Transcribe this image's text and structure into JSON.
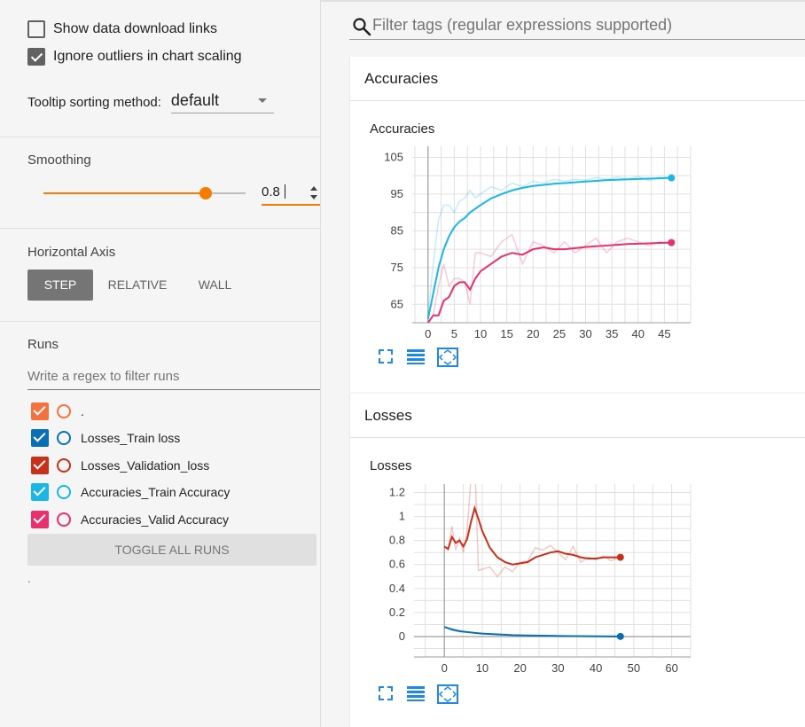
{
  "sidebar": {
    "show_download_links": {
      "label": "Show data download links",
      "checked": false
    },
    "ignore_outliers": {
      "label": "Ignore outliers in chart scaling",
      "checked": true
    },
    "tooltip_sorting": {
      "label": "Tooltip sorting method:",
      "value": "default"
    },
    "smoothing": {
      "label": "Smoothing",
      "value": "0.8",
      "fraction": 0.8
    },
    "horizontal_axis": {
      "label": "Horizontal Axis",
      "options": [
        "STEP",
        "RELATIVE",
        "WALL"
      ],
      "selected": "STEP"
    },
    "runs": {
      "label": "Runs",
      "filter_placeholder": "Write a regex to filter runs",
      "items": [
        {
          "label": ".",
          "color": "#f4723d",
          "checked": true
        },
        {
          "label": "Losses_Train loss",
          "color": "#0b6fb4",
          "checked": true
        },
        {
          "label": "Losses_Validation_loss",
          "color": "#c8301a",
          "checked": true
        },
        {
          "label": "Accuracies_Train Accuracy",
          "color": "#19b6e6",
          "checked": true
        },
        {
          "label": "Accuracies_Valid Accuracy",
          "color": "#e8306c",
          "checked": true
        }
      ],
      "toggle_label": "TOGGLE ALL RUNS",
      "footer": "."
    }
  },
  "tag_filter": {
    "placeholder": "Filter tags (regular expressions supported)",
    "icon": "search-icon"
  },
  "cards": [
    {
      "header": "Accuracies",
      "chart_title": "Accuracies"
    },
    {
      "header": "Losses",
      "chart_title": "Losses"
    }
  ],
  "chart_icons": [
    "fullscreen-icon",
    "data-table-icon",
    "fit-domain-icon"
  ],
  "chart_data": [
    {
      "type": "line",
      "title": "Accuracies",
      "xlabel": "",
      "ylabel": "",
      "xlim": [
        -3,
        50
      ],
      "ylim": [
        60,
        108
      ],
      "xticks": [
        0,
        5,
        10,
        15,
        20,
        25,
        30,
        35,
        40,
        45
      ],
      "yticks": [
        65,
        75,
        85,
        95,
        105
      ],
      "grid": true,
      "series": [
        {
          "name": "Accuracies_Train Accuracy",
          "color": "#19b6e6",
          "x": [
            0,
            1,
            2,
            3,
            4,
            5,
            6,
            7,
            8,
            9,
            10,
            12,
            14,
            16,
            18,
            20,
            22,
            24,
            26,
            28,
            30,
            32,
            34,
            36,
            38,
            40,
            42,
            44,
            46
          ],
          "y": [
            61,
            68,
            75,
            80,
            83.5,
            86,
            87.5,
            88.5,
            90,
            91,
            92,
            93.8,
            95,
            96,
            96.7,
            97.2,
            97.5,
            97.8,
            98,
            98.2,
            98.4,
            98.6,
            98.8,
            98.9,
            99,
            99.1,
            99.2,
            99.3,
            99.4
          ],
          "raw_y": [
            62,
            76,
            88,
            92,
            92,
            90,
            93,
            94,
            96,
            94,
            95,
            97,
            96,
            98,
            97,
            98.5,
            98,
            99,
            98.5,
            99,
            98.8,
            99.5,
            99,
            99.6,
            99.2,
            99.8,
            98.7,
            99.6,
            99.4
          ]
        },
        {
          "name": "Accuracies_Valid Accuracy",
          "color": "#e8306c",
          "x": [
            0,
            1,
            2,
            3,
            4,
            5,
            6,
            7,
            8,
            9,
            10,
            12,
            14,
            16,
            18,
            20,
            22,
            24,
            26,
            28,
            30,
            32,
            34,
            36,
            38,
            40,
            42,
            44,
            46
          ],
          "y": [
            60,
            62,
            62,
            66,
            67,
            70,
            71,
            71,
            69,
            72,
            74,
            76,
            78,
            79,
            78.5,
            80,
            80.5,
            80,
            80,
            80.3,
            80.6,
            80.8,
            81,
            81.2,
            81.4,
            81.5,
            81.6,
            81.7,
            81.8
          ],
          "raw_y": [
            60,
            62,
            70,
            76,
            70,
            72,
            72,
            71,
            65,
            79,
            79,
            78,
            82,
            84,
            76,
            82,
            81,
            79,
            82,
            79,
            81,
            83,
            79,
            82,
            83,
            82,
            81,
            82,
            81.5
          ]
        }
      ]
    },
    {
      "type": "line",
      "title": "Losses",
      "xlabel": "",
      "ylabel": "",
      "xlim": [
        -8,
        65
      ],
      "ylim": [
        -0.17,
        1.27
      ],
      "xticks": [
        0,
        10,
        20,
        30,
        40,
        50,
        60
      ],
      "yticks": [
        0,
        0.2,
        0.4,
        0.6,
        0.8,
        1,
        1.2
      ],
      "ytick_labels": [
        "0",
        "0.2",
        "0.4",
        "0.6",
        "0.8",
        "1",
        "1.2"
      ],
      "grid": true,
      "series": [
        {
          "name": "Losses_Train loss",
          "color": "#0b6fb4",
          "x": [
            0,
            2,
            4,
            6,
            8,
            10,
            14,
            18,
            22,
            26,
            30,
            34,
            38,
            42,
            46
          ],
          "y": [
            0.08,
            0.06,
            0.045,
            0.038,
            0.03,
            0.025,
            0.018,
            0.012,
            0.009,
            0.007,
            0.005,
            0.004,
            0.003,
            0.002,
            0.001
          ],
          "raw_y": [
            0.08,
            0.05,
            0.04,
            0.035,
            0.03,
            0.022,
            0.015,
            0.01,
            0.008,
            0.006,
            0.004,
            0.003,
            0.002,
            0.002,
            0.001
          ]
        },
        {
          "name": "Losses_Validation_loss",
          "color": "#c8301a",
          "x": [
            0,
            1,
            2,
            3,
            4,
            5,
            6,
            7,
            8,
            9,
            10,
            12,
            14,
            16,
            18,
            20,
            22,
            24,
            26,
            28,
            30,
            32,
            34,
            36,
            38,
            40,
            42,
            44,
            46
          ],
          "y": [
            0.75,
            0.73,
            0.83,
            0.78,
            0.8,
            0.75,
            0.81,
            0.95,
            1.07,
            0.98,
            0.88,
            0.74,
            0.66,
            0.62,
            0.6,
            0.61,
            0.62,
            0.66,
            0.68,
            0.7,
            0.71,
            0.69,
            0.68,
            0.66,
            0.65,
            0.65,
            0.66,
            0.66,
            0.66
          ],
          "raw_y": [
            0.75,
            0.72,
            0.92,
            0.72,
            0.82,
            0.7,
            0.88,
            1.3,
            1.5,
            0.55,
            0.56,
            0.58,
            0.5,
            0.58,
            0.54,
            0.62,
            0.63,
            0.74,
            0.72,
            0.76,
            0.7,
            0.64,
            0.75,
            0.62,
            0.66,
            0.64,
            0.67,
            0.63,
            0.66
          ]
        }
      ]
    }
  ]
}
